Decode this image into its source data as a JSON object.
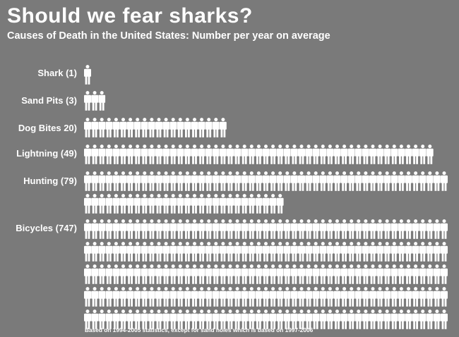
{
  "title": "Should we fear sharks?",
  "subtitle": "Causes of Death in the United States: Number per year on average",
  "footnote": "Based on 1994-2005 statistics, except for sand holes which is based on 1997-2006",
  "colors": {
    "background": "#7a7a7a",
    "icon": "#ffffff",
    "text": "#ffffff"
  },
  "chart_data": {
    "type": "pictograph",
    "icon": "person-icon",
    "categories": [
      "Shark (1)",
      "Sand Pits (3)",
      "Dog Bites  20)",
      "Lightning (49)",
      "Hunting (79)",
      "Bicycles (747)"
    ],
    "values": [
      1,
      3,
      20,
      49,
      79,
      747
    ],
    "unit": "deaths per year",
    "labels": [
      "Shark (1)",
      "Sand Pits (3)",
      "Dog Bites  20)",
      "Lightning (49)",
      "Hunting (79)",
      "Bicycles (747)"
    ]
  }
}
